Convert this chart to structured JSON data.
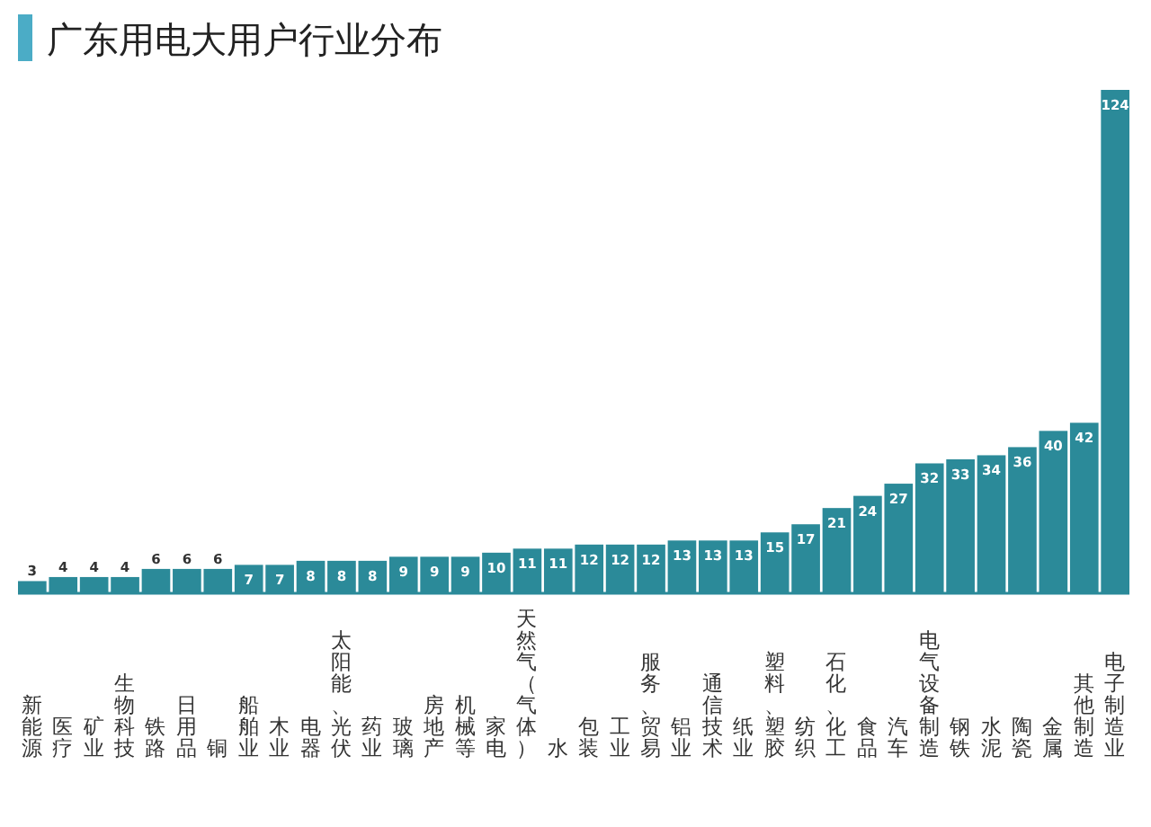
{
  "chart_data": {
    "type": "bar",
    "title": "广东用电大用户行业分布",
    "categories": [
      "新能源",
      "医疗",
      "矿业",
      "生物科技",
      "铁路",
      "日用品",
      "铜",
      "船舶业",
      "木业",
      "电器",
      "太阳能、光伏",
      "药业",
      "玻璃",
      "房地产",
      "机械等",
      "家电",
      "天然气（气体）",
      "水",
      "包装",
      "工业",
      "服务、贸易",
      "铝业",
      "通信技术",
      "纸业",
      "塑料、塑胶",
      "纺织",
      "石化、化工",
      "食品",
      "汽车",
      "电气设备制造",
      "钢铁",
      "水泥",
      "陶瓷",
      "金属",
      "其他制造",
      "电子制造业"
    ],
    "values": [
      3,
      4,
      4,
      4,
      6,
      6,
      6,
      7,
      7,
      8,
      8,
      8,
      9,
      9,
      9,
      10,
      11,
      11,
      12,
      12,
      12,
      13,
      13,
      13,
      15,
      17,
      21,
      24,
      27,
      32,
      33,
      34,
      36,
      40,
      42,
      124
    ],
    "color": "#2b8a99",
    "data_labels": true
  }
}
